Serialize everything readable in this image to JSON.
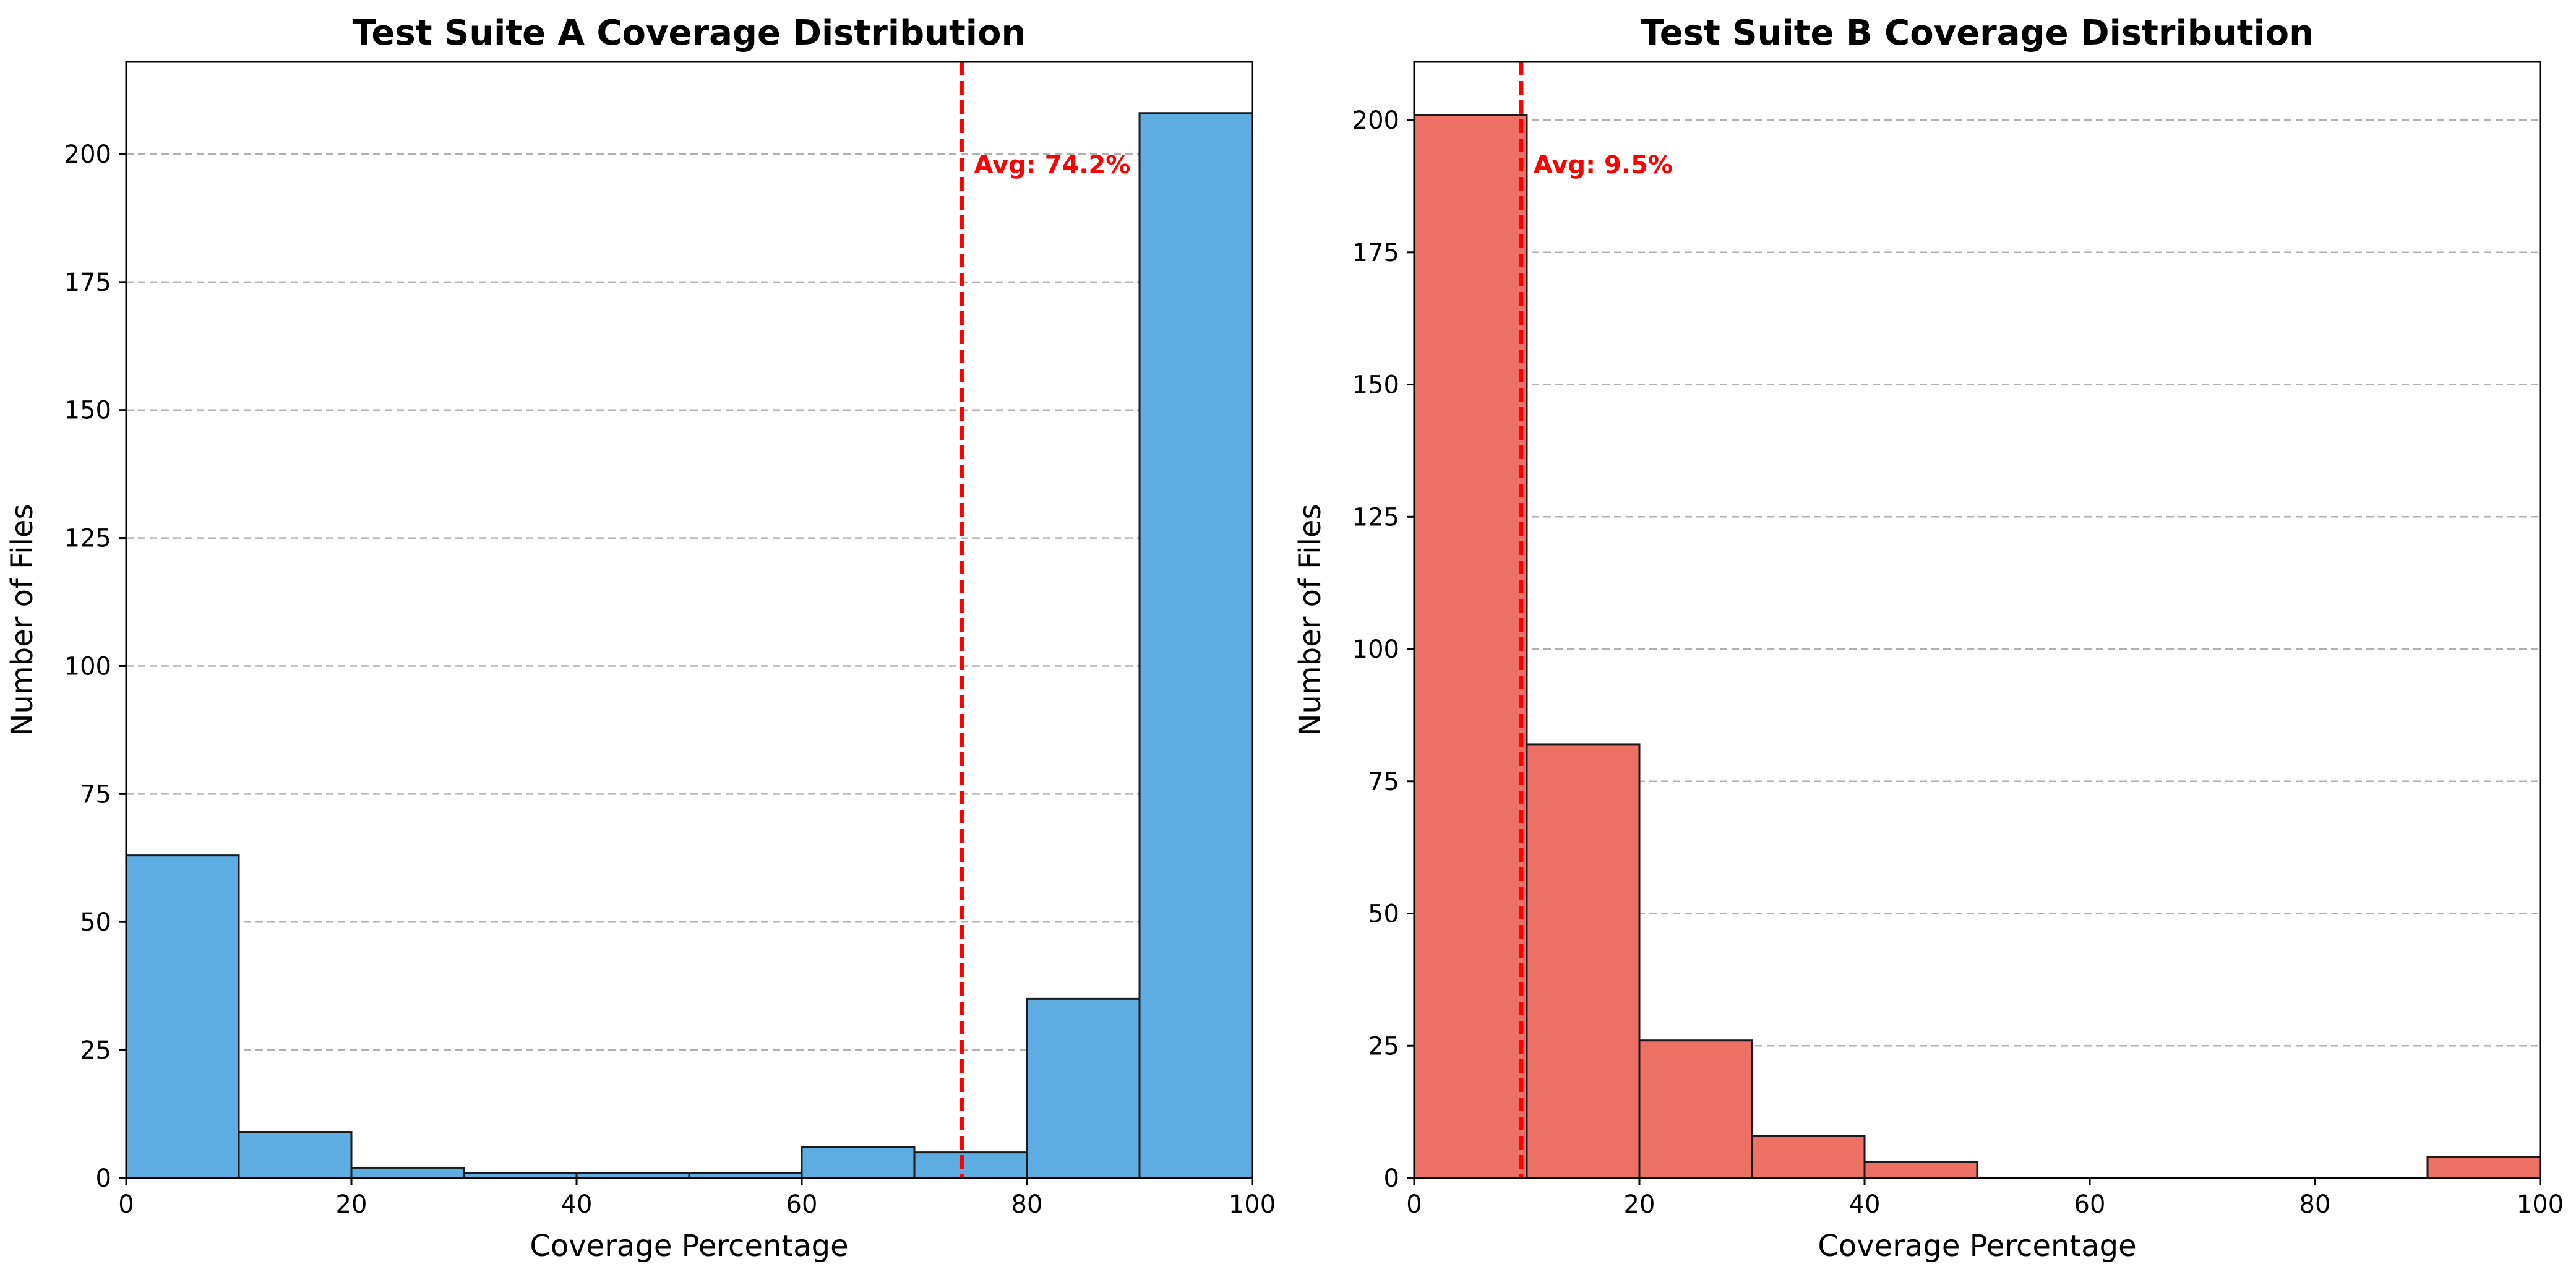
{
  "chart_data": [
    {
      "type": "bar",
      "title": "Test Suite A Coverage Distribution",
      "xlabel": "Coverage Percentage",
      "ylabel": "Number of Files",
      "xlim": [
        0,
        100
      ],
      "ylim": [
        0,
        218
      ],
      "xticks": [
        0,
        20,
        40,
        60,
        80,
        100
      ],
      "yticks": [
        0,
        25,
        50,
        75,
        100,
        125,
        150,
        175,
        200
      ],
      "bin_edges": [
        0,
        10,
        20,
        30,
        40,
        50,
        60,
        70,
        80,
        90,
        100
      ],
      "values": [
        63,
        9,
        2,
        1,
        1,
        1,
        6,
        5,
        35,
        208
      ],
      "color": "#5DADE2",
      "grid": "y, dashed",
      "reference_line": {
        "x": 74.2,
        "label": "Avg: 74.2%",
        "color": "#FF0000"
      }
    },
    {
      "type": "bar",
      "title": "Test Suite B Coverage Distribution",
      "xlabel": "Coverage Percentage",
      "ylabel": "Number of Files",
      "xlim": [
        0,
        100
      ],
      "ylim": [
        0,
        211
      ],
      "xticks": [
        0,
        20,
        40,
        60,
        80,
        100
      ],
      "yticks": [
        0,
        25,
        50,
        75,
        100,
        125,
        150,
        175,
        200
      ],
      "bin_edges": [
        0,
        10,
        20,
        30,
        40,
        50,
        60,
        70,
        80,
        90,
        100
      ],
      "values": [
        201,
        82,
        26,
        8,
        3,
        0,
        0,
        0,
        0,
        4
      ],
      "color": "#EC7063",
      "grid": "y, dashed",
      "reference_line": {
        "x": 9.5,
        "label": "Avg: 9.5%",
        "color": "#FF0000"
      }
    }
  ]
}
